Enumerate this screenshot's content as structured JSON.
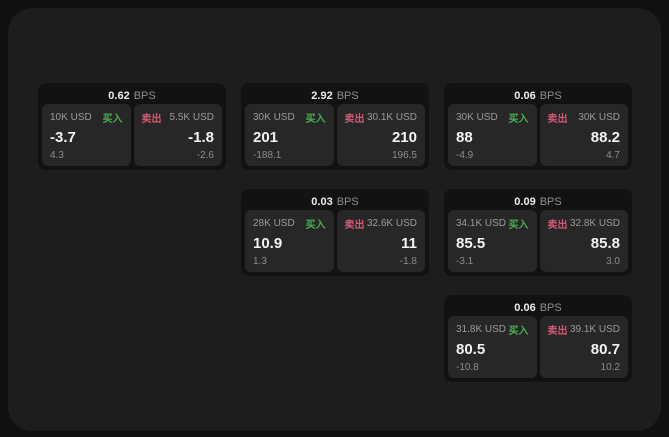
{
  "labels": {
    "buy": "买入",
    "sell": "卖出",
    "unit": "BPS"
  },
  "colors": {
    "buy_accent": "#4caf50",
    "sell_accent": "#d05a74",
    "panel_bg": "#1d1d1e",
    "card_bg": "#121213",
    "tile_bg": "#272728"
  },
  "cards": [
    {
      "bps": "0.62",
      "buy": {
        "amount": "10K USD",
        "value": "-3.7",
        "delta": "4.3"
      },
      "sell": {
        "amount": "5.5K USD",
        "value": "-1.8",
        "delta": "-2.6"
      }
    },
    {
      "bps": "2.92",
      "buy": {
        "amount": "30K USD",
        "value": "201",
        "delta": "-188.1"
      },
      "sell": {
        "amount": "30.1K USD",
        "value": "210",
        "delta": "196.5"
      }
    },
    {
      "bps": "0.06",
      "buy": {
        "amount": "30K USD",
        "value": "88",
        "delta": "-4.9"
      },
      "sell": {
        "amount": "30K USD",
        "value": "88.2",
        "delta": "4.7"
      }
    },
    {
      "bps": "0.03",
      "buy": {
        "amount": "28K USD",
        "value": "10.9",
        "delta": "1.3"
      },
      "sell": {
        "amount": "32.6K USD",
        "value": "11",
        "delta": "-1.8"
      }
    },
    {
      "bps": "0.09",
      "buy": {
        "amount": "34.1K USD",
        "value": "85.5",
        "delta": "-3.1"
      },
      "sell": {
        "amount": "32.8K USD",
        "value": "85.8",
        "delta": "3.0"
      }
    },
    {
      "bps": "0.06",
      "buy": {
        "amount": "31.8K USD",
        "value": "80.5",
        "delta": "-10.8"
      },
      "sell": {
        "amount": "39.1K USD",
        "value": "80.7",
        "delta": "10.2"
      }
    }
  ]
}
